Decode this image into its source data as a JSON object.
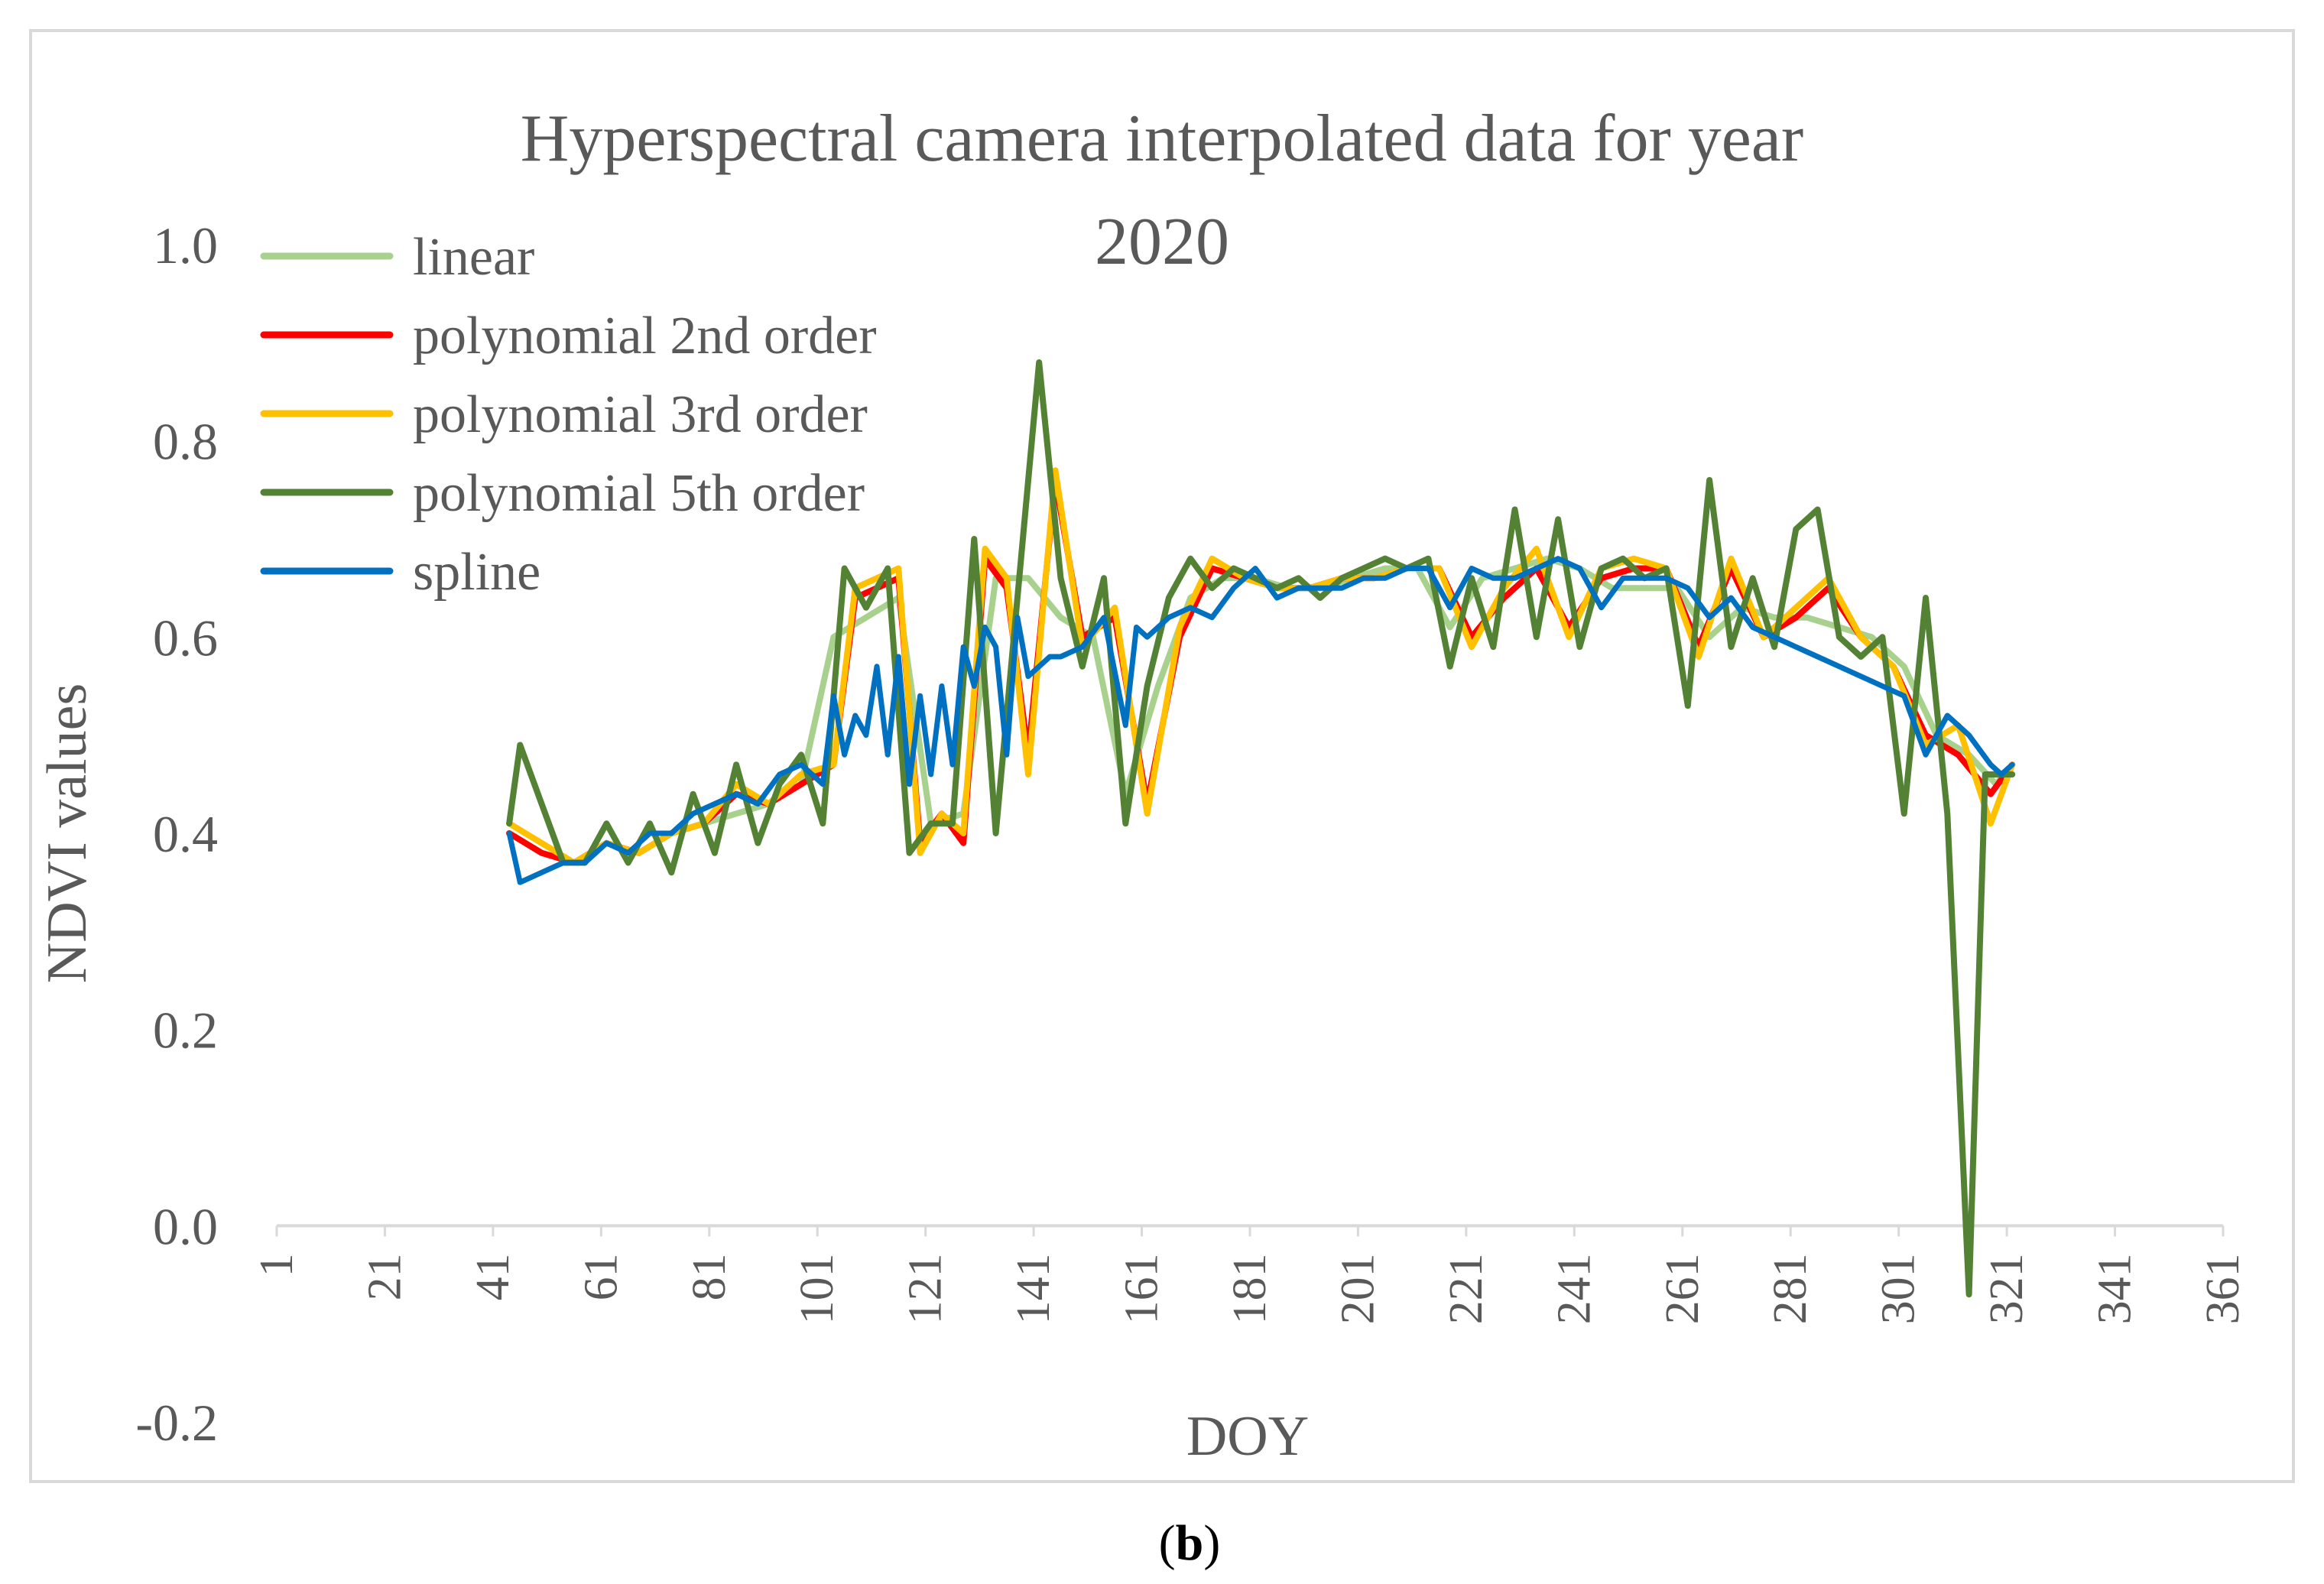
{
  "chart_data": {
    "type": "line",
    "title_lines": [
      "Hyperspectral camera interpolated data for year",
      "2020"
    ],
    "xlabel": "DOY",
    "ylabel": "NDVI values",
    "ylim": [
      -0.2,
      1.0
    ],
    "xlim": [
      1,
      361
    ],
    "y_ticks": [
      1.0,
      0.8,
      0.6,
      0.4,
      0.2,
      0.0,
      -0.2
    ],
    "y_tick_labels": [
      "1.0",
      "0.8",
      "0.6",
      "0.4",
      "0.2",
      "0.0",
      "-0.2"
    ],
    "x_ticks": [
      1,
      21,
      41,
      61,
      81,
      101,
      121,
      141,
      161,
      181,
      201,
      221,
      241,
      261,
      281,
      301,
      321,
      341,
      361
    ],
    "x_tick_labels": [
      "1",
      "21",
      "41",
      "61",
      "81",
      "101",
      "121",
      "141",
      "161",
      "181",
      "201",
      "221",
      "241",
      "261",
      "281",
      "301",
      "321",
      "341",
      "361"
    ],
    "grid": "none",
    "legend_position": "top-left",
    "series": [
      {
        "name": "linear",
        "color": "#a9d18e",
        "x": [
          44,
          50,
          56,
          62,
          68,
          74,
          80,
          86,
          92,
          98,
          104,
          110,
          116,
          122,
          128,
          134,
          140,
          146,
          152,
          158,
          164,
          170,
          176,
          182,
          188,
          194,
          200,
          206,
          212,
          218,
          224,
          230,
          236,
          242,
          248,
          254,
          260,
          266,
          272,
          278,
          284,
          290,
          296,
          302,
          308,
          314,
          319,
          322
        ],
        "values": [
          0.4,
          0.38,
          0.37,
          0.39,
          0.38,
          0.4,
          0.41,
          0.42,
          0.43,
          0.45,
          0.6,
          0.62,
          0.64,
          0.41,
          0.42,
          0.66,
          0.66,
          0.62,
          0.6,
          0.44,
          0.55,
          0.64,
          0.66,
          0.66,
          0.65,
          0.65,
          0.66,
          0.67,
          0.67,
          0.61,
          0.66,
          0.67,
          0.68,
          0.67,
          0.65,
          0.65,
          0.65,
          0.6,
          0.63,
          0.62,
          0.62,
          0.61,
          0.6,
          0.57,
          0.5,
          0.48,
          0.45,
          0.47
        ]
      },
      {
        "name": "polynomial 2nd order",
        "color": "#ff0000",
        "x": [
          44,
          50,
          56,
          62,
          68,
          74,
          80,
          86,
          92,
          98,
          104,
          108,
          112,
          116,
          120,
          124,
          128,
          132,
          136,
          140,
          145,
          150,
          156,
          162,
          168,
          174,
          180,
          186,
          192,
          198,
          204,
          210,
          216,
          222,
          228,
          234,
          240,
          246,
          252,
          258,
          264,
          270,
          276,
          282,
          288,
          294,
          300,
          306,
          312,
          318,
          322
        ],
        "values": [
          0.4,
          0.38,
          0.37,
          0.39,
          0.38,
          0.4,
          0.41,
          0.44,
          0.43,
          0.45,
          0.47,
          0.64,
          0.65,
          0.66,
          0.39,
          0.42,
          0.39,
          0.68,
          0.65,
          0.48,
          0.76,
          0.6,
          0.62,
          0.43,
          0.6,
          0.67,
          0.66,
          0.65,
          0.65,
          0.66,
          0.66,
          0.67,
          0.67,
          0.6,
          0.64,
          0.67,
          0.61,
          0.66,
          0.67,
          0.67,
          0.59,
          0.67,
          0.6,
          0.62,
          0.65,
          0.6,
          0.57,
          0.5,
          0.48,
          0.44,
          0.47
        ]
      },
      {
        "name": "polynomial 3rd order",
        "color": "#ffc000",
        "x": [
          44,
          50,
          56,
          62,
          68,
          74,
          80,
          86,
          92,
          98,
          104,
          108,
          112,
          116,
          120,
          124,
          128,
          132,
          136,
          140,
          145,
          150,
          156,
          162,
          168,
          174,
          180,
          186,
          192,
          198,
          204,
          210,
          216,
          222,
          228,
          234,
          240,
          246,
          252,
          258,
          264,
          270,
          276,
          282,
          288,
          294,
          300,
          306,
          312,
          318,
          322
        ],
        "values": [
          0.41,
          0.39,
          0.37,
          0.39,
          0.38,
          0.4,
          0.41,
          0.45,
          0.43,
          0.46,
          0.47,
          0.65,
          0.66,
          0.67,
          0.38,
          0.42,
          0.4,
          0.69,
          0.66,
          0.46,
          0.77,
          0.59,
          0.63,
          0.42,
          0.61,
          0.68,
          0.66,
          0.65,
          0.65,
          0.66,
          0.66,
          0.67,
          0.67,
          0.59,
          0.65,
          0.69,
          0.6,
          0.67,
          0.68,
          0.67,
          0.58,
          0.68,
          0.6,
          0.63,
          0.66,
          0.6,
          0.57,
          0.49,
          0.51,
          0.41,
          0.47
        ]
      },
      {
        "name": "polynomial 5th order",
        "color": "#548235",
        "x": [
          44,
          46,
          50,
          54,
          58,
          62,
          66,
          70,
          74,
          78,
          82,
          86,
          90,
          94,
          98,
          102,
          106,
          110,
          114,
          118,
          122,
          126,
          130,
          134,
          138,
          142,
          146,
          150,
          154,
          158,
          162,
          166,
          170,
          174,
          178,
          182,
          186,
          190,
          194,
          198,
          202,
          206,
          210,
          214,
          218,
          222,
          226,
          230,
          234,
          238,
          242,
          246,
          250,
          254,
          258,
          262,
          266,
          270,
          274,
          278,
          282,
          286,
          290,
          294,
          298,
          302,
          306,
          310,
          314,
          317,
          320,
          322
        ],
        "values": [
          0.41,
          0.49,
          0.43,
          0.37,
          0.37,
          0.41,
          0.37,
          0.41,
          0.36,
          0.44,
          0.38,
          0.47,
          0.39,
          0.45,
          0.48,
          0.41,
          0.67,
          0.63,
          0.67,
          0.38,
          0.41,
          0.41,
          0.7,
          0.4,
          0.64,
          0.88,
          0.66,
          0.57,
          0.66,
          0.41,
          0.55,
          0.64,
          0.68,
          0.65,
          0.67,
          0.66,
          0.65,
          0.66,
          0.64,
          0.66,
          0.67,
          0.68,
          0.67,
          0.68,
          0.57,
          0.66,
          0.59,
          0.73,
          0.6,
          0.72,
          0.59,
          0.67,
          0.68,
          0.66,
          0.67,
          0.53,
          0.76,
          0.59,
          0.66,
          0.59,
          0.71,
          0.73,
          0.6,
          0.58,
          0.6,
          0.42,
          0.64,
          0.42,
          -0.07,
          0.46,
          0.46,
          0.46
        ]
      },
      {
        "name": "spline",
        "color": "#0070c0",
        "x": [
          44,
          46,
          50,
          54,
          58,
          62,
          66,
          70,
          74,
          78,
          82,
          86,
          90,
          94,
          98,
          100,
          102,
          104,
          106,
          108,
          110,
          112,
          114,
          116,
          118,
          120,
          122,
          124,
          126,
          128,
          130,
          132,
          134,
          136,
          138,
          140,
          142,
          144,
          146,
          150,
          154,
          158,
          160,
          162,
          166,
          170,
          174,
          178,
          182,
          186,
          190,
          194,
          198,
          202,
          206,
          210,
          214,
          218,
          222,
          226,
          230,
          234,
          238,
          242,
          246,
          250,
          254,
          258,
          262,
          266,
          270,
          274,
          278,
          282,
          286,
          290,
          294,
          298,
          302,
          306,
          310,
          314,
          318,
          320,
          322
        ],
        "values": [
          0.4,
          0.35,
          0.36,
          0.37,
          0.37,
          0.39,
          0.38,
          0.4,
          0.4,
          0.42,
          0.43,
          0.44,
          0.43,
          0.46,
          0.47,
          0.46,
          0.45,
          0.54,
          0.48,
          0.52,
          0.5,
          0.57,
          0.48,
          0.58,
          0.45,
          0.54,
          0.46,
          0.55,
          0.47,
          0.59,
          0.55,
          0.61,
          0.59,
          0.48,
          0.62,
          0.56,
          0.57,
          0.58,
          0.58,
          0.59,
          0.62,
          0.51,
          0.61,
          0.6,
          0.62,
          0.63,
          0.62,
          0.65,
          0.67,
          0.64,
          0.65,
          0.65,
          0.65,
          0.66,
          0.66,
          0.67,
          0.67,
          0.63,
          0.67,
          0.66,
          0.66,
          0.67,
          0.68,
          0.67,
          0.63,
          0.66,
          0.66,
          0.66,
          0.65,
          0.62,
          0.64,
          0.61,
          0.6,
          0.59,
          0.58,
          0.57,
          0.56,
          0.55,
          0.54,
          0.48,
          0.52,
          0.5,
          0.47,
          0.46,
          0.47
        ]
      }
    ]
  },
  "caption": {
    "open": "(",
    "letter": "b",
    "close": ")"
  }
}
